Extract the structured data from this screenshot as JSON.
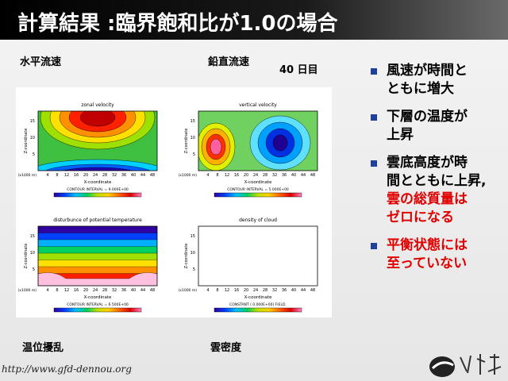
{
  "title": "計算結果 :臨界飽和比が1.0の場合",
  "labels": {
    "zonal": "水平流速",
    "vertical": "鉛直流速",
    "day": "40 日目",
    "temperature": "温位擾乱",
    "cloud": "雲密度"
  },
  "bullets": [
    {
      "lines": [
        "風速が時間と",
        "ともに増大"
      ]
    },
    {
      "lines": [
        "下層の温度が",
        "上昇"
      ]
    },
    {
      "lines": [
        "雲底高度が時",
        "間とともに上昇,",
        "雲の総質量は",
        "ゼロになる"
      ]
    },
    {
      "lines": [
        "平衡状態には",
        "至っていない"
      ]
    }
  ],
  "figure": {
    "x_label": "X-coordinate",
    "y_label": "Z-coordinate",
    "unit": "(x1000 m)",
    "x_ticks": [
      "4",
      "8",
      "12",
      "16",
      "20",
      "24",
      "28",
      "32",
      "36",
      "40",
      "44",
      "48"
    ],
    "y_ticks": [
      "5",
      "10",
      "15"
    ],
    "panels": [
      {
        "title": "zonal velocity",
        "note": "CONTOUR INTERVAL = 9.000E+00"
      },
      {
        "title": "vertical velocity",
        "note": "CONTOUR INTERVAL = 5.000E+00"
      },
      {
        "title": "disturbunce of potential temperature",
        "note": "CONTOUR INTERVAL = 6.500E+00"
      },
      {
        "title": "density of cloud",
        "note": "CONSTANT ( 0.000E+00) FIELD."
      }
    ]
  },
  "footer": "http://www.gfd-dennou.org"
}
